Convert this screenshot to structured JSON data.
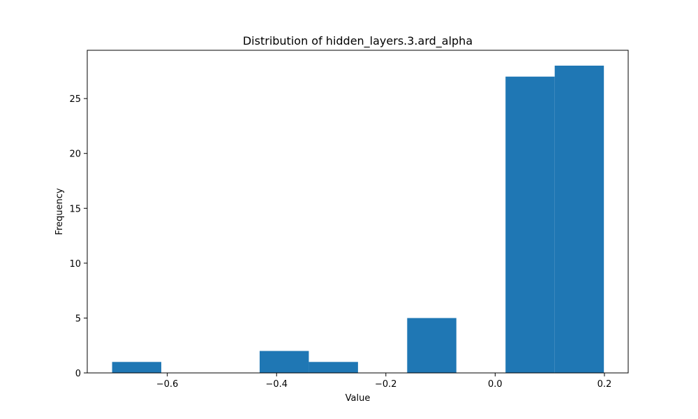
{
  "chart_data": {
    "type": "bar",
    "title": "Distribution of hidden_layers.3.ard_alpha",
    "xlabel": "Value",
    "ylabel": "Frequency",
    "xlim": [
      -0.7465,
      0.2435
    ],
    "ylim": [
      0,
      29.4
    ],
    "xticks": [
      -0.6,
      -0.4,
      -0.2,
      0.0,
      0.2
    ],
    "xtick_labels": [
      "−0.6",
      "−0.4",
      "−0.2",
      "0.0",
      "0.2"
    ],
    "yticks": [
      0,
      5,
      10,
      15,
      20,
      25
    ],
    "ytick_labels": [
      "0",
      "5",
      "10",
      "15",
      "20",
      "25"
    ],
    "bar_color": "#1f77b4",
    "grid": false,
    "bins": [
      {
        "x0": -0.701,
        "x1": -0.611,
        "count": 1
      },
      {
        "x0": -0.611,
        "x1": -0.521,
        "count": 0
      },
      {
        "x0": -0.521,
        "x1": -0.431,
        "count": 0
      },
      {
        "x0": -0.431,
        "x1": -0.341,
        "count": 2
      },
      {
        "x0": -0.341,
        "x1": -0.251,
        "count": 1
      },
      {
        "x0": -0.251,
        "x1": -0.161,
        "count": 0
      },
      {
        "x0": -0.161,
        "x1": -0.071,
        "count": 5
      },
      {
        "x0": -0.071,
        "x1": 0.019,
        "count": 0
      },
      {
        "x0": 0.019,
        "x1": 0.109,
        "count": 27
      },
      {
        "x0": 0.109,
        "x1": 0.199,
        "count": 28
      }
    ]
  }
}
